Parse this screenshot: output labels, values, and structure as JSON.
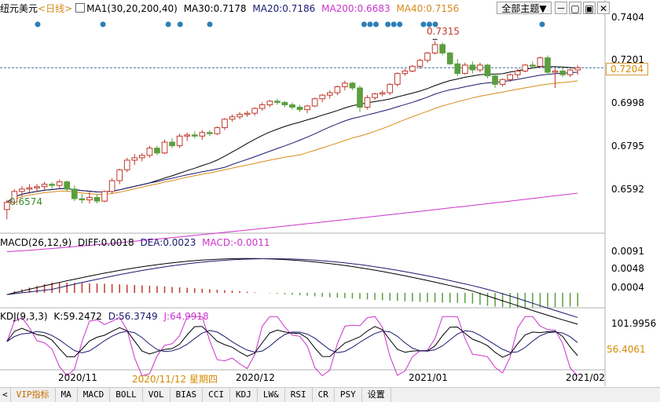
{
  "header": {
    "symbol": "纽元美元",
    "period": "<日线>",
    "ma_label": "MA1(30,20,200,40)",
    "ma30": "MA30:0.7178",
    "ma20": "MA20:0.7186",
    "ma200": "MA200:0.6683",
    "ma40": "MA40:0.7156"
  },
  "toolbar": {
    "theme_select": "全部主题▼",
    "icons": [
      "zoom-out-icon",
      "window-icon",
      "fullscreen-icon",
      "close-icon"
    ]
  },
  "price_axis": [
    "0.7404",
    "0.7201",
    "0.6998",
    "0.6795",
    "0.6592"
  ],
  "current_price": "0.7204",
  "labels": {
    "high": "0.7315",
    "low": "0.6574"
  },
  "macd": {
    "title": "MACD(26,12,9)",
    "diff": "DIFF:0.0018",
    "dea": "DEA:0.0023",
    "macd": "MACD:-0.0011",
    "axis": [
      "0.0091",
      "0.0048",
      "0.0004"
    ]
  },
  "kdj": {
    "title": "KDJ(9,3,3)",
    "k": "K:59.2472",
    "d": "D:56.3749",
    "j": "J:64.9918",
    "axis_top": "101.9956",
    "axis_value": "56.4061"
  },
  "x_axis": [
    "2020/11",
    "2020/11/12 星期四",
    "2020/12",
    "2021/01",
    "2021/02"
  ],
  "tabs": [
    "VIP指标",
    "MA",
    "MACD",
    "BOLL",
    "VOL",
    "BIAS",
    "CCI",
    "KDJ",
    "LW&",
    "RSI",
    "CR",
    "PSY",
    "设置"
  ],
  "colors": {
    "up": "#c0392b",
    "down": "#5b9e3f",
    "ma30": "#1a1a6e",
    "ma20": "#000000",
    "ma200": "#cc33cc",
    "ma40": "#d98a1a"
  },
  "chart_data": {
    "type": "candlestick",
    "candles": [
      [
        0.6615,
        0.6655,
        0.6574,
        0.6645
      ],
      [
        0.6645,
        0.67,
        0.6635,
        0.669
      ],
      [
        0.669,
        0.6712,
        0.667,
        0.67
      ],
      [
        0.67,
        0.672,
        0.668,
        0.6705
      ],
      [
        0.6705,
        0.6722,
        0.669,
        0.671
      ],
      [
        0.671,
        0.673,
        0.6695,
        0.672
      ],
      [
        0.672,
        0.6728,
        0.67,
        0.6715
      ],
      [
        0.6715,
        0.674,
        0.67,
        0.673
      ],
      [
        0.673,
        0.6735,
        0.669,
        0.67
      ],
      [
        0.67,
        0.6715,
        0.665,
        0.666
      ],
      [
        0.666,
        0.668,
        0.664,
        0.6655
      ],
      [
        0.6655,
        0.669,
        0.664,
        0.6665
      ],
      [
        0.6665,
        0.668,
        0.664,
        0.665
      ],
      [
        0.665,
        0.6695,
        0.6645,
        0.669
      ],
      [
        0.669,
        0.6745,
        0.668,
        0.6735
      ],
      [
        0.6735,
        0.6785,
        0.672,
        0.678
      ],
      [
        0.678,
        0.683,
        0.677,
        0.682
      ],
      [
        0.682,
        0.6845,
        0.68,
        0.683
      ],
      [
        0.683,
        0.685,
        0.6815,
        0.684
      ],
      [
        0.684,
        0.688,
        0.683,
        0.687
      ],
      [
        0.687,
        0.688,
        0.684,
        0.685
      ],
      [
        0.685,
        0.6905,
        0.6845,
        0.6895
      ],
      [
        0.6895,
        0.6912,
        0.687,
        0.688
      ],
      [
        0.688,
        0.693,
        0.687,
        0.692
      ],
      [
        0.692,
        0.6935,
        0.69,
        0.6925
      ],
      [
        0.6925,
        0.694,
        0.691,
        0.692
      ],
      [
        0.692,
        0.6945,
        0.6905,
        0.6935
      ],
      [
        0.6935,
        0.6945,
        0.692,
        0.693
      ],
      [
        0.693,
        0.696,
        0.6925,
        0.6955
      ],
      [
        0.6955,
        0.6995,
        0.6945,
        0.699
      ],
      [
        0.699,
        0.701,
        0.698,
        0.7
      ],
      [
        0.7,
        0.702,
        0.699,
        0.701
      ],
      [
        0.701,
        0.7025,
        0.7,
        0.7015
      ],
      [
        0.7015,
        0.704,
        0.7005,
        0.7035
      ],
      [
        0.7035,
        0.706,
        0.7025,
        0.705
      ],
      [
        0.705,
        0.707,
        0.704,
        0.7065
      ],
      [
        0.7065,
        0.7075,
        0.705,
        0.706
      ],
      [
        0.706,
        0.7065,
        0.704,
        0.705
      ],
      [
        0.705,
        0.706,
        0.703,
        0.704
      ],
      [
        0.704,
        0.705,
        0.702,
        0.703
      ],
      [
        0.703,
        0.705,
        0.7015,
        0.7045
      ],
      [
        0.7045,
        0.708,
        0.704,
        0.7075
      ],
      [
        0.7075,
        0.7095,
        0.706,
        0.709
      ],
      [
        0.709,
        0.711,
        0.7075,
        0.71
      ],
      [
        0.71,
        0.713,
        0.709,
        0.7125
      ],
      [
        0.7125,
        0.715,
        0.711,
        0.714
      ],
      [
        0.714,
        0.7145,
        0.711,
        0.712
      ],
      [
        0.712,
        0.713,
        0.702,
        0.704
      ],
      [
        0.704,
        0.709,
        0.703,
        0.708
      ],
      [
        0.708,
        0.71,
        0.707,
        0.7095
      ],
      [
        0.7095,
        0.711,
        0.7085,
        0.71
      ],
      [
        0.71,
        0.714,
        0.709,
        0.7135
      ],
      [
        0.7135,
        0.7185,
        0.7125,
        0.718
      ],
      [
        0.718,
        0.72,
        0.717,
        0.719
      ],
      [
        0.719,
        0.7215,
        0.7185,
        0.721
      ],
      [
        0.721,
        0.724,
        0.72,
        0.7235
      ],
      [
        0.7235,
        0.727,
        0.7225,
        0.7265
      ],
      [
        0.7265,
        0.7315,
        0.726,
        0.73
      ],
      [
        0.73,
        0.731,
        0.7255,
        0.7265
      ],
      [
        0.7265,
        0.727,
        0.7215,
        0.722
      ],
      [
        0.722,
        0.724,
        0.717,
        0.718
      ],
      [
        0.718,
        0.7225,
        0.7175,
        0.7215
      ],
      [
        0.7215,
        0.723,
        0.718,
        0.7195
      ],
      [
        0.7195,
        0.7225,
        0.7185,
        0.7215
      ],
      [
        0.7215,
        0.722,
        0.716,
        0.717
      ],
      [
        0.717,
        0.718,
        0.712,
        0.7135
      ],
      [
        0.7135,
        0.716,
        0.7125,
        0.7155
      ],
      [
        0.7155,
        0.718,
        0.7145,
        0.7175
      ],
      [
        0.7175,
        0.72,
        0.716,
        0.719
      ],
      [
        0.719,
        0.722,
        0.7185,
        0.7215
      ],
      [
        0.7215,
        0.723,
        0.72,
        0.721
      ],
      [
        0.721,
        0.725,
        0.7205,
        0.7245
      ],
      [
        0.7245,
        0.7255,
        0.7175,
        0.7185
      ],
      [
        0.7185,
        0.72,
        0.712,
        0.719
      ],
      [
        0.719,
        0.721,
        0.7165,
        0.7175
      ],
      [
        0.7175,
        0.72,
        0.7165,
        0.7195
      ],
      [
        0.7195,
        0.7215,
        0.7175,
        0.7204
      ]
    ],
    "ylim": [
      0.652,
      0.742
    ]
  }
}
